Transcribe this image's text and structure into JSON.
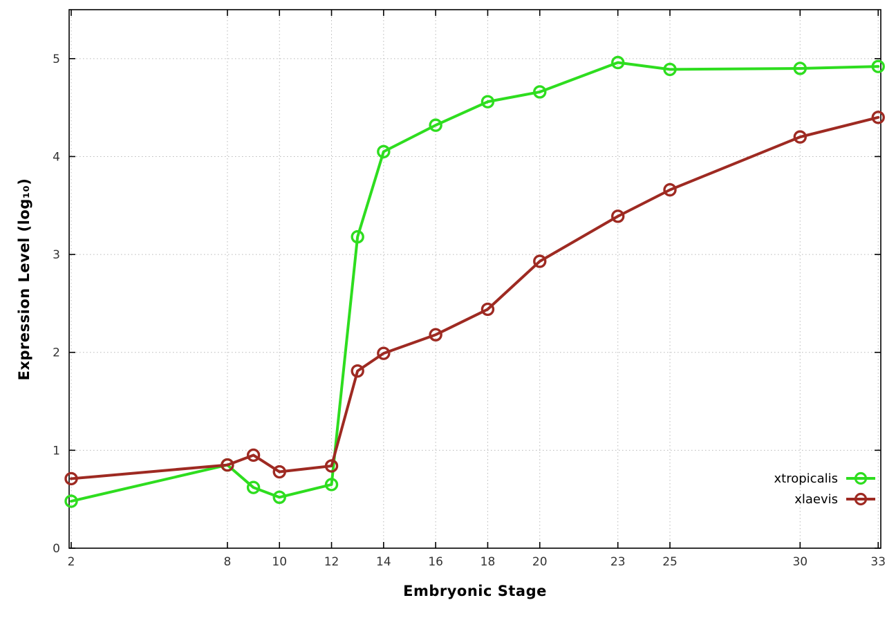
{
  "chart_data": {
    "type": "line",
    "title": "",
    "xlabel": "Embryonic Stage",
    "ylabel": "Expression Level (log₁₀)",
    "xlim": [
      1.92,
      33.1
    ],
    "ylim": [
      0,
      5.5
    ],
    "x_ticks": [
      2,
      8,
      10,
      12,
      14,
      16,
      18,
      20,
      23,
      25,
      30,
      33
    ],
    "y_ticks": [
      0,
      1,
      2,
      3,
      4,
      5
    ],
    "grid": true,
    "legend_position": "bottom-right",
    "x": [
      2,
      8,
      9,
      10,
      12,
      13,
      14,
      16,
      18,
      20,
      23,
      25,
      30,
      33
    ],
    "series": [
      {
        "name": "xtropicalis",
        "color": "#2edd1f",
        "values": [
          0.48,
          0.85,
          0.62,
          0.52,
          0.65,
          3.18,
          4.05,
          4.32,
          4.56,
          4.66,
          4.96,
          4.89,
          4.9,
          4.92
        ]
      },
      {
        "name": "xlaevis",
        "color": "#9e2a22",
        "values": [
          0.71,
          0.85,
          0.95,
          0.78,
          0.84,
          1.81,
          1.99,
          2.18,
          2.44,
          2.93,
          3.39,
          3.66,
          4.2,
          4.4
        ]
      }
    ],
    "colors": {
      "border": "#000000",
      "grid": "#b8b8b8",
      "tick_label": "#333333"
    }
  }
}
